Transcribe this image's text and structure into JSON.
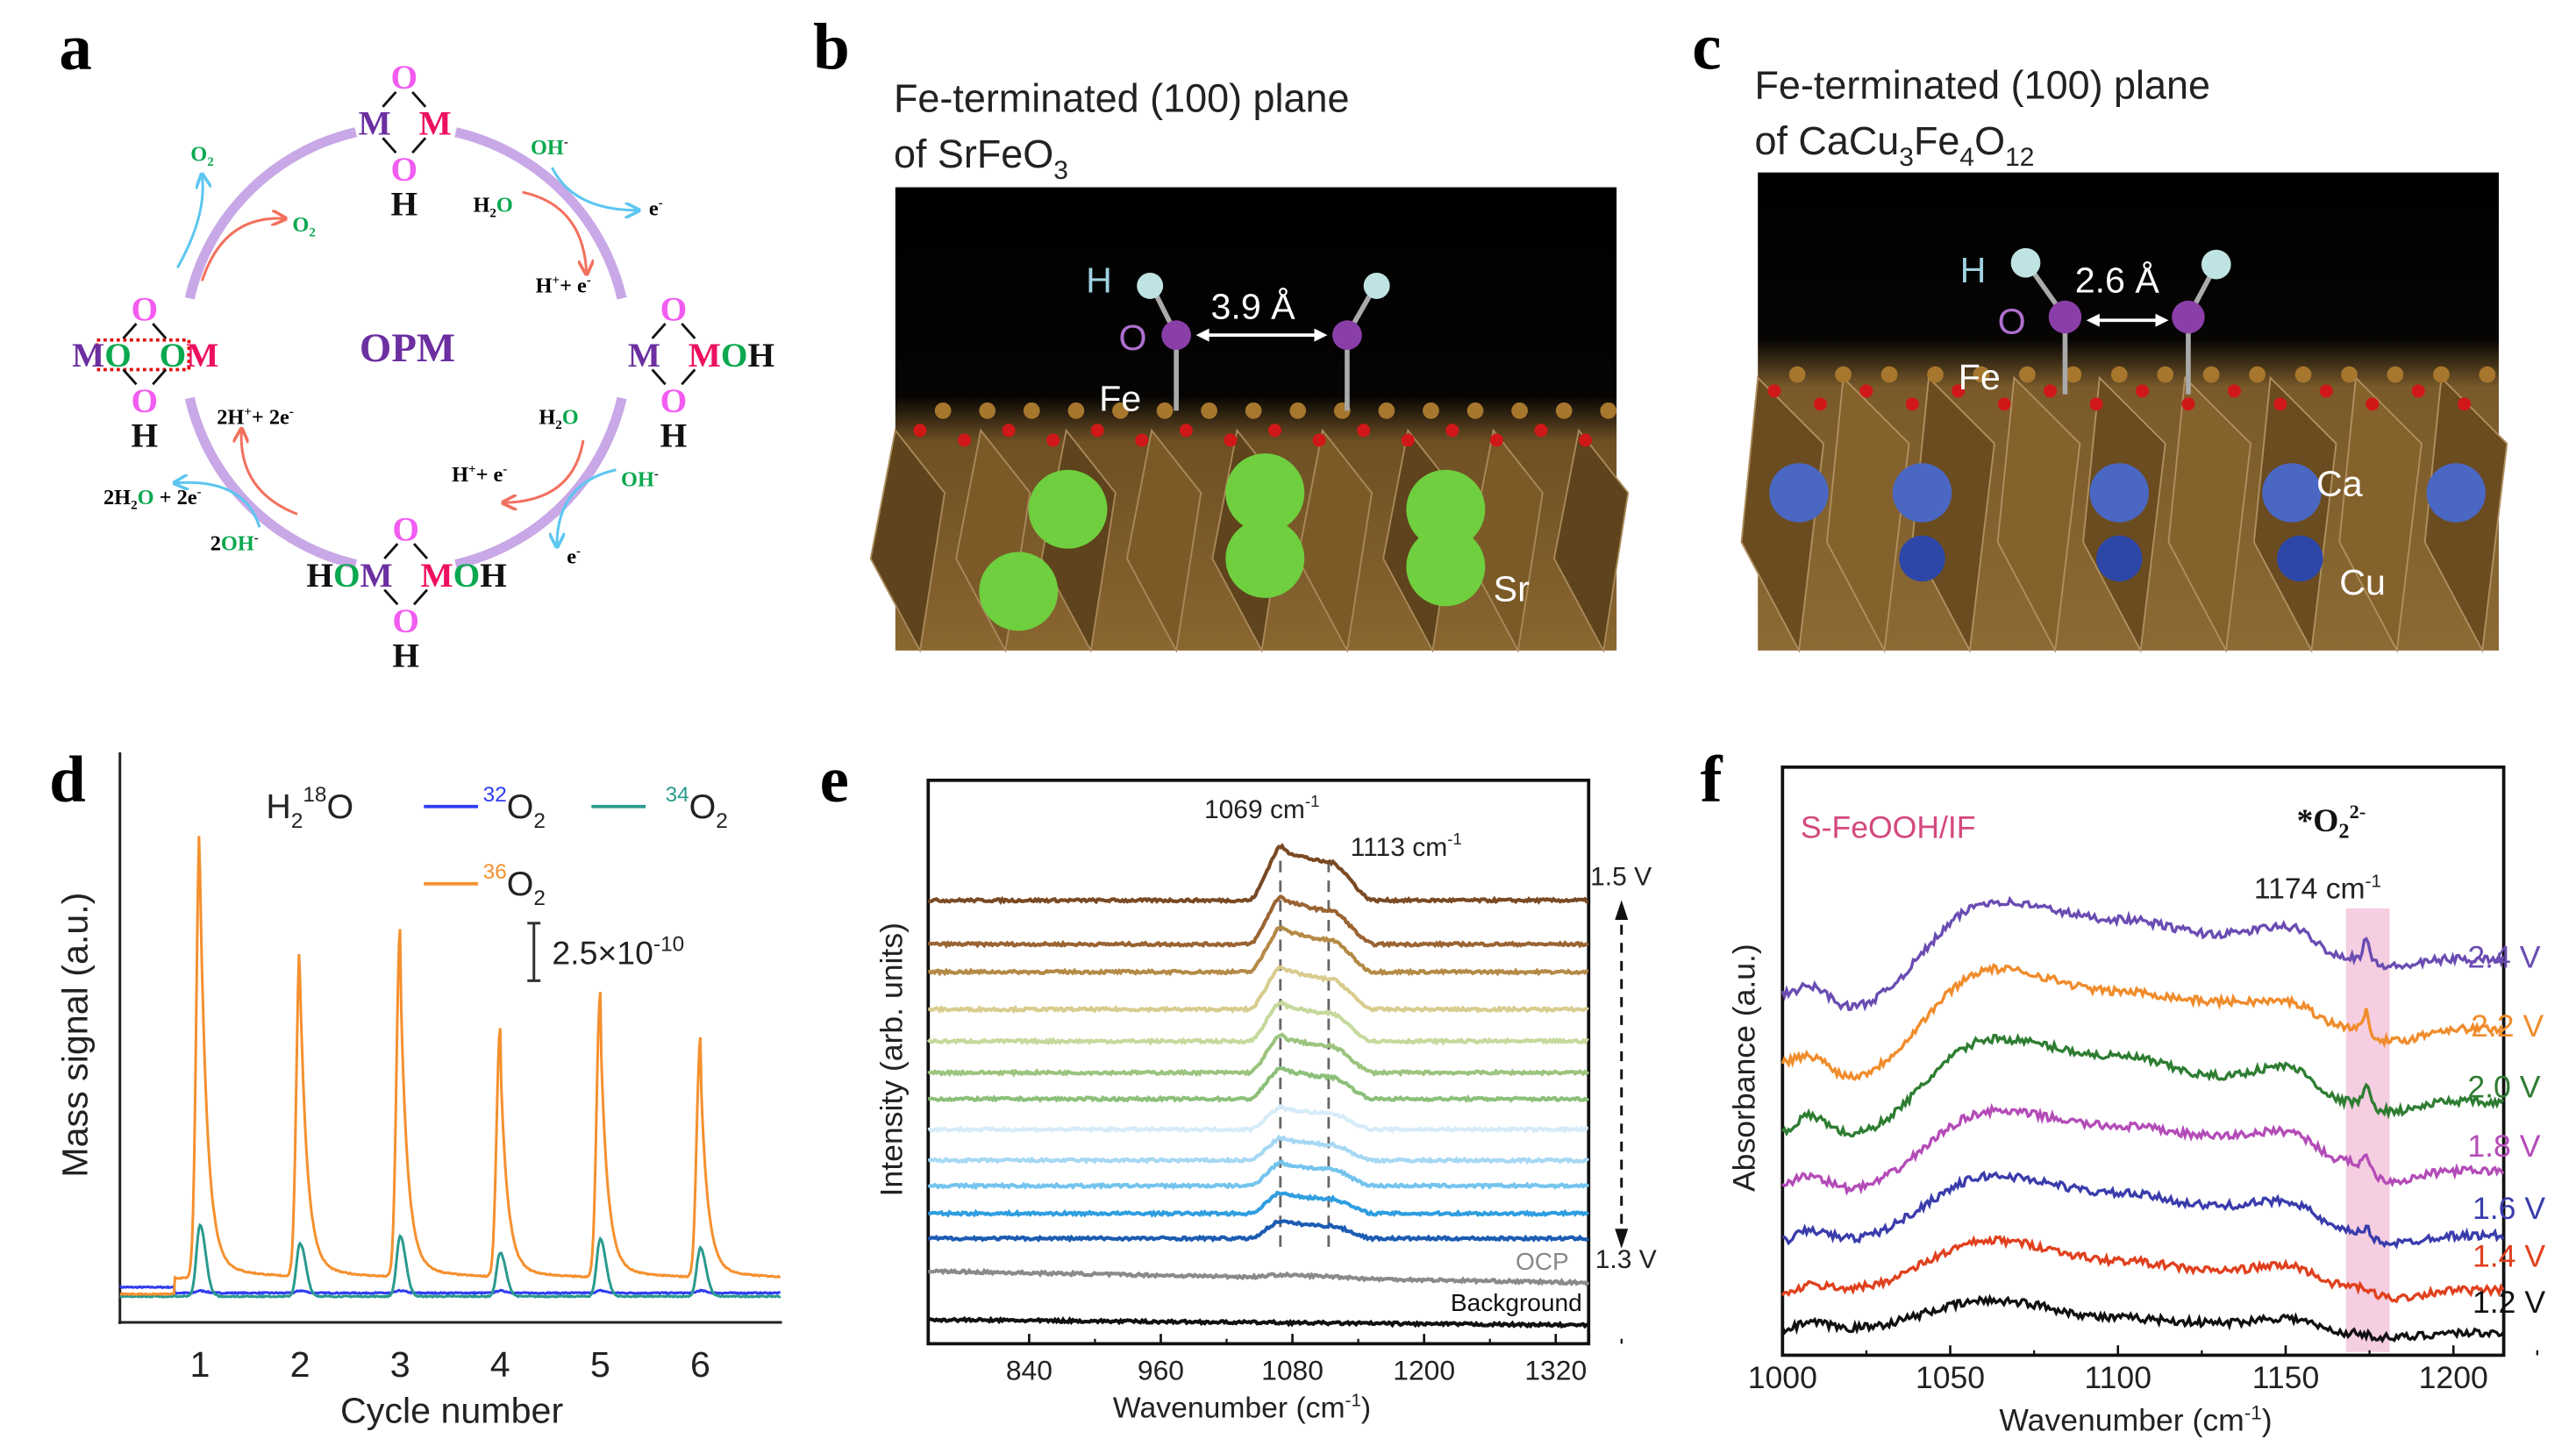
{
  "panels": {
    "a": {
      "letter": "a",
      "center_label": "OPM",
      "colors": {
        "pink_O": "#f25cf0",
        "purple_M": "#6b2fa0",
        "red_M": "#ee1060",
        "green_O": "#0aa84f",
        "ring": "#c8a8e6",
        "blue_arrow": "#5cc6f0",
        "red_arrow": "#f2705e",
        "dotted_box": "#e01010"
      },
      "nodes": {
        "top": {
          "o_top": "O",
          "left": [
            {
              "t": "M",
              "c": "purple_M"
            }
          ],
          "right": [
            {
              "t": "M",
              "c": "red_M"
            }
          ],
          "o_bottom": "O",
          "h": "H"
        },
        "right": {
          "o_top": "O",
          "left": [
            {
              "t": "M",
              "c": "purple_M"
            }
          ],
          "right": [
            {
              "t": "M",
              "c": "red_M"
            },
            {
              "t": "O",
              "c": "green_O"
            },
            {
              "t": "H",
              "c": "black"
            }
          ],
          "o_bottom": "O",
          "h": "H"
        },
        "bottom": {
          "o_top": "O",
          "left": [
            {
              "t": "H",
              "c": "black"
            },
            {
              "t": "O",
              "c": "green_O"
            },
            {
              "t": "M",
              "c": "purple_M"
            }
          ],
          "right": [
            {
              "t": "M",
              "c": "red_M"
            },
            {
              "t": "O",
              "c": "green_O"
            },
            {
              "t": "H",
              "c": "black"
            }
          ],
          "o_bottom": "O",
          "h": "H"
        },
        "left": {
          "o_top": "O",
          "left": [
            {
              "t": "M",
              "c": "purple_M"
            },
            {
              "t": "O",
              "c": "green_O"
            }
          ],
          "right": [
            {
              "t": "O",
              "c": "green_O"
            },
            {
              "t": "M",
              "c": "red_M"
            }
          ],
          "o_bottom": "O",
          "h": "H"
        }
      },
      "labels": {
        "o2_outer": {
          "main": "O",
          "sub": "2"
        },
        "o2_inner": {
          "main": "O",
          "sub": "2"
        },
        "oh_top_right": {
          "main": "OH",
          "sup": "-"
        },
        "h2o_top_right": {
          "h": "H",
          "sub": "2",
          "o": "O"
        },
        "e_top_right": {
          "main": "e",
          "sup": "-"
        },
        "hplus_e_top_right": {
          "a": "H",
          "sup1": "+",
          "b": "+ e",
          "sup2": "-"
        },
        "h2o_bottom_right": {
          "h": "H",
          "sub": "2",
          "o": "O"
        },
        "hplus_e_bottom_right": {
          "a": "H",
          "sup1": "+",
          "b": "+ e",
          "sup2": "-"
        },
        "oh_bottom_right": {
          "main": "OH",
          "sup": "-"
        },
        "e_bottom_right": {
          "main": "e",
          "sup": "-"
        },
        "two_hplus_two_e": {
          "a": "2H",
          "sup1": "+",
          "b": "+ 2e",
          "sup2": "-"
        },
        "two_h2o_two_e": {
          "a": "2H",
          "sub": "2",
          "o": "O",
          "b": " + 2e",
          "sup": "-"
        },
        "two_oh": {
          "a": "2",
          "o": "OH",
          "sup": "-"
        }
      }
    },
    "b": {
      "letter": "b",
      "title_line1": "Fe-terminated (100) plane",
      "title_line2_main": "of SrFeO",
      "title_line2_sub": "3",
      "atom_labels": {
        "h": "H",
        "o": "O",
        "fe": "Fe",
        "sr": "Sr"
      },
      "distance": "3.9 Å"
    },
    "c": {
      "letter": "c",
      "title_line1": "Fe-terminated (100) plane",
      "title_line2": [
        {
          "t": "of CaCu"
        },
        {
          "t": "3",
          "sub": true
        },
        {
          "t": "Fe"
        },
        {
          "t": "4",
          "sub": true
        },
        {
          "t": "O"
        },
        {
          "t": "12",
          "sub": true
        }
      ],
      "atom_labels": {
        "h": "H",
        "o": "O",
        "fe": "Fe",
        "ca": "Ca",
        "cu": "Cu"
      },
      "distance": "2.6 Å"
    },
    "d": {
      "letter": "d"
    },
    "e": {
      "letter": "e"
    },
    "f": {
      "letter": "f"
    }
  },
  "chart_data": [
    {
      "panel": "d",
      "type": "line",
      "xlabel": "Cycle number",
      "ylabel": "Mass signal (a.u.)",
      "x_ticks": [
        1,
        2,
        3,
        4,
        5,
        6
      ],
      "xlim": [
        0.2,
        6.8
      ],
      "ylim_units_of_scale_bar_1e-10": [
        -1.4,
        23.2
      ],
      "grid": false,
      "legend": {
        "placement": "top-right",
        "title_main": "H",
        "title_sub": "2",
        "title_sup": "18",
        "title_end": "O"
      },
      "scale_bar": {
        "value": "2.5×10",
        "exp": "-10",
        "units_1e-10": 2.5
      },
      "peak_positions": [
        1,
        2,
        3,
        4,
        5,
        6
      ],
      "series": [
        {
          "name_sup": "32",
          "name_main": "O",
          "name_sub": "2",
          "color": "#2f3cf0",
          "peak_heights_1e-10": [
            0.1,
            0.1,
            0.1,
            0.1,
            0.1,
            0.1
          ],
          "baseline": -0.15
        },
        {
          "name_sup": "34",
          "name_main": "O",
          "name_sub": "2",
          "color": "#2a9a8e",
          "peak_heights_1e-10": [
            3.1,
            2.3,
            2.6,
            1.9,
            2.5,
            2.1
          ],
          "baseline": -0.3
        },
        {
          "name_sup": "36",
          "name_main": "O",
          "name_sub": "2",
          "color": "#f5902e",
          "peak_heights_1e-10": [
            20.0,
            14.6,
            15.1,
            10.8,
            12.4,
            10.4
          ],
          "baseline": 0.5
        }
      ]
    },
    {
      "panel": "e",
      "type": "line",
      "xlabel_main": "Wavenumber (cm",
      "xlabel_sup": "-1",
      "xlabel_end": ")",
      "ylabel": "Intensity (arb. units)",
      "x_ticks": [
        840,
        960,
        1080,
        1200,
        1320
      ],
      "xlim": [
        748,
        1350
      ],
      "ylim": [
        0,
        12.2
      ],
      "grid": false,
      "reference_lines": [
        {
          "x": 1069,
          "label_main": "1069 cm",
          "label_sup": "-1"
        },
        {
          "x": 1113,
          "label_main": "1113 cm",
          "label_sup": "-1"
        }
      ],
      "potential_range": {
        "top": "1.5 V",
        "bottom": "1.3 V"
      },
      "series": [
        {
          "color": "#7a4a24",
          "baseline": 9.6,
          "peak": 1.04
        },
        {
          "color": "#9a6432",
          "baseline": 8.65,
          "peak": 0.92
        },
        {
          "color": "#b48a46",
          "baseline": 8.05,
          "peak": 0.87
        },
        {
          "color": "#d8cc8e",
          "baseline": 7.24,
          "peak": 0.83
        },
        {
          "color": "#c6d99c",
          "baseline": 6.55,
          "peak": 0.75
        },
        {
          "color": "#9cc47e",
          "baseline": 5.87,
          "peak": 0.72
        },
        {
          "color": "#8cc07a",
          "baseline": 5.3,
          "peak": 0.6
        },
        {
          "color": "#d6ecf8",
          "baseline": 4.64,
          "peak": 0.43
        },
        {
          "color": "#a6d8f4",
          "baseline": 3.97,
          "peak": 0.43
        },
        {
          "color": "#74c4ee",
          "baseline": 3.42,
          "peak": 0.45
        },
        {
          "color": "#2f9ee0",
          "baseline": 2.82,
          "peak": 0.4
        },
        {
          "color": "#1c5cb2",
          "baseline": 2.28,
          "peak": 0.34
        },
        {
          "name": "OCP",
          "color": "#8a8a8a",
          "baseline": 1.57,
          "baseline_end": 1.32,
          "peak": 0.05
        },
        {
          "name": "Background",
          "color": "#111111",
          "baseline": 0.52,
          "baseline_end": 0.4,
          "peak": 0
        }
      ]
    },
    {
      "panel": "f",
      "type": "line",
      "title": "S-FeOOH/IF",
      "title_color": "#d4487e",
      "xlabel_main": "Wavenumber (cm",
      "xlabel_sup": "-1",
      "xlabel_end": ")",
      "ylabel": "Absorbance (a.u.)",
      "x_ticks": [
        1000,
        1050,
        1100,
        1150,
        1200
      ],
      "xlim": [
        1000,
        1215
      ],
      "ylim": [
        0,
        11.8
      ],
      "grid": false,
      "highlight_band": {
        "range": [
          1168,
          1181
        ],
        "color": "#f4c6dc",
        "label_main": "1174 cm",
        "label_sup": "-1",
        "species_main": "*O",
        "species_sub": "2",
        "species_sup": "2-"
      },
      "key_wavenumbers": [
        1000,
        1008,
        1020,
        1063,
        1100,
        1130,
        1150,
        1168,
        1182,
        1200,
        1215
      ],
      "series": [
        {
          "name": "2.4 V",
          "color": "#6a4cb2",
          "values": [
            7.25,
            7.4,
            7.0,
            9.1,
            8.75,
            8.45,
            8.6,
            8.0,
            7.8,
            7.95,
            7.95
          ],
          "spike_1174": 0.45
        },
        {
          "name": "2.2 V",
          "color": "#f08c2c",
          "values": [
            5.9,
            6.0,
            5.6,
            7.75,
            7.3,
            7.1,
            7.1,
            6.6,
            6.3,
            6.55,
            6.55
          ],
          "spike_1174": 0.4
        },
        {
          "name": "2.0 V",
          "color": "#2e7d32",
          "values": [
            4.5,
            4.8,
            4.45,
            6.35,
            6.0,
            5.6,
            5.8,
            5.1,
            4.9,
            5.1,
            5.05
          ],
          "spike_1174": 0.4
        },
        {
          "name": "1.8 V",
          "color": "#b44cb8",
          "values": [
            3.45,
            3.6,
            3.35,
            4.9,
            4.6,
            4.4,
            4.5,
            3.9,
            3.5,
            3.7,
            3.7
          ],
          "spike_1174": 0.3
        },
        {
          "name": "1.6 V",
          "color": "#3a3cac",
          "values": [
            2.3,
            2.5,
            2.35,
            3.6,
            3.25,
            3.0,
            3.1,
            2.5,
            2.25,
            2.4,
            2.4
          ],
          "spike_1174": 0.15
        },
        {
          "name": "1.4 V",
          "color": "#e0401e",
          "values": [
            1.2,
            1.4,
            1.35,
            2.3,
            1.9,
            1.7,
            1.8,
            1.4,
            1.15,
            1.3,
            1.3
          ],
          "spike_1174": 0
        },
        {
          "name": "1.2 V",
          "color": "#111111",
          "values": [
            0.5,
            0.65,
            0.55,
            1.1,
            0.75,
            0.65,
            0.75,
            0.45,
            0.35,
            0.45,
            0.45
          ],
          "spike_1174": 0
        }
      ]
    }
  ]
}
